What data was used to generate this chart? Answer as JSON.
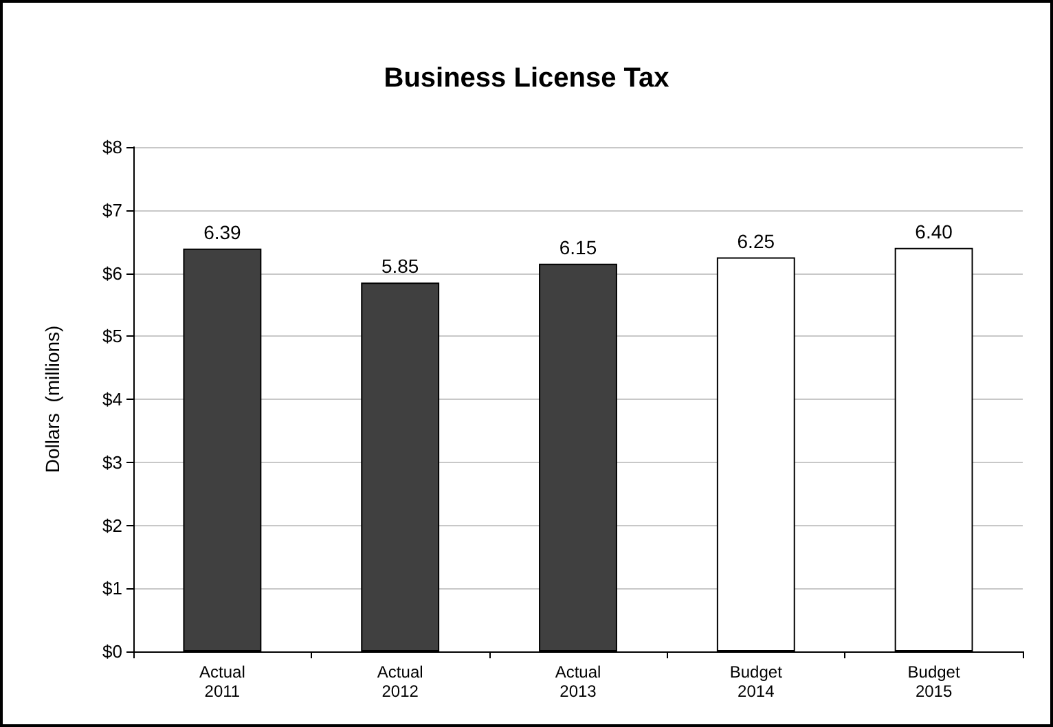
{
  "chart_data": {
    "type": "bar",
    "title": "Business License Tax",
    "ylabel": "Dollars  (millions)",
    "categories": [
      "Actual\n2011",
      "Actual\n2012",
      "Actual\n2013",
      "Budget\n2014",
      "Budget\n2015"
    ],
    "values": [
      6.39,
      5.85,
      6.15,
      6.25,
      6.4
    ],
    "colors": [
      "#404040",
      "#404040",
      "#404040",
      "#ffffff",
      "#ffffff"
    ],
    "value_labels": [
      "6.39",
      "5.85",
      "6.15",
      "6.25",
      "6.40"
    ],
    "ylim": [
      0,
      8
    ],
    "yticks": [
      {
        "value": 0,
        "label": "$0"
      },
      {
        "value": 1,
        "label": "$1"
      },
      {
        "value": 2,
        "label": "$2"
      },
      {
        "value": 3,
        "label": "$3"
      },
      {
        "value": 4,
        "label": "$4"
      },
      {
        "value": 5,
        "label": "$5"
      },
      {
        "value": 6,
        "label": "$6"
      },
      {
        "value": 7,
        "label": "$7"
      },
      {
        "value": 8,
        "label": "$8"
      }
    ],
    "grid": "y"
  }
}
